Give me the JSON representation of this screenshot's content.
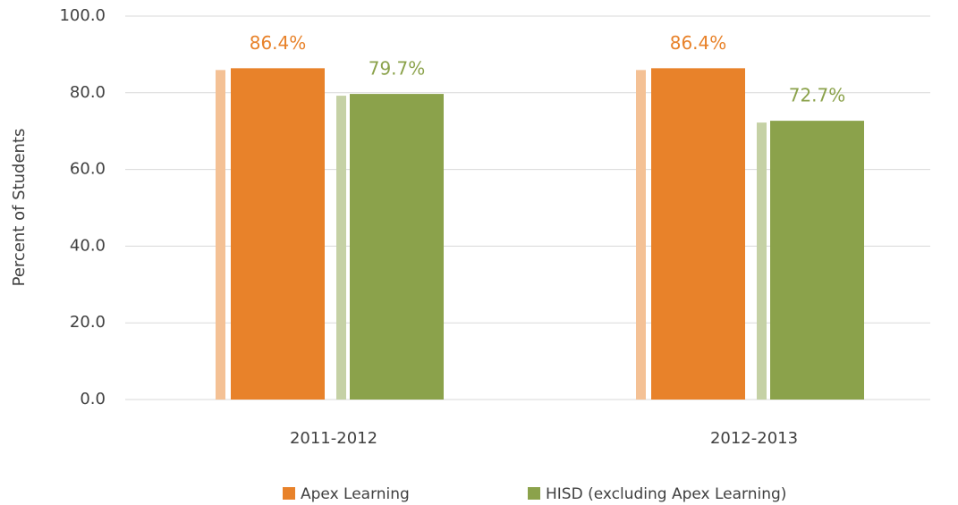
{
  "chart_data": {
    "type": "bar",
    "y_label": "Percent of Students",
    "categories": [
      "2011-2012",
      "2012-2013"
    ],
    "series": [
      {
        "name": "Apex Learning",
        "color": "#e8822a",
        "values": [
          86.4,
          86.4
        ],
        "value_labels": [
          "86.4%",
          "86.4%"
        ]
      },
      {
        "name": "HISD (excluding Apex Learning)",
        "color": "#8ba24b",
        "values": [
          79.7,
          72.7
        ],
        "value_labels": [
          "79.7%",
          "72.7%"
        ]
      }
    ],
    "ylim": [
      0,
      100
    ],
    "yticks": [
      {
        "value": 0,
        "label": "0.0"
      },
      {
        "value": 20,
        "label": "20.0"
      },
      {
        "value": 40,
        "label": "40.0"
      },
      {
        "value": 60,
        "label": "60.0"
      },
      {
        "value": 80,
        "label": "80.0"
      },
      {
        "value": 100,
        "label": "100.0"
      }
    ],
    "grid": true
  }
}
